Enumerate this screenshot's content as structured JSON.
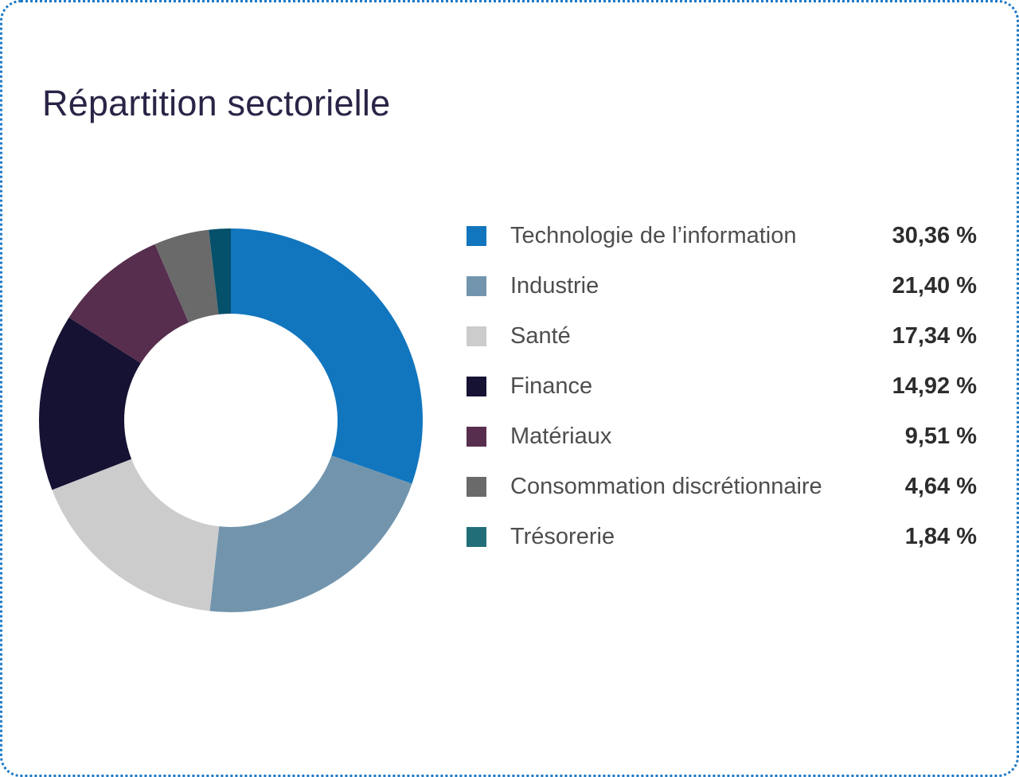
{
  "card": {
    "border_color": "#1d79c5",
    "background_color": "#ffffff"
  },
  "title": "Répartition sectorielle",
  "title_color": "#2a2447",
  "chart_data": {
    "type": "pie",
    "variant": "donut",
    "title": "Répartition sectorielle",
    "start_angle_deg": -90,
    "direction": "clockwise",
    "inner_radius_ratio": 0.556,
    "legend_position": "right",
    "value_format": "percent, comma decimal separator, space before %",
    "items": [
      {
        "label": "Technologie de l’information",
        "value": 30.36,
        "display": "30,36 %",
        "color": "#1276be"
      },
      {
        "label": "Industrie",
        "value": 21.4,
        "display": "21,40 %",
        "color": "#7295ad"
      },
      {
        "label": "Santé",
        "value": 17.34,
        "display": "17,34 %",
        "color": "#cccccd"
      },
      {
        "label": "Finance",
        "value": 14.92,
        "display": "14,92 %",
        "color": "#161233"
      },
      {
        "label": "Matériaux",
        "value": 9.51,
        "display": "9,51 %",
        "color": "#572e4e"
      },
      {
        "label": "Consommation discrétionnaire",
        "value": 4.64,
        "display": "4,64 %",
        "color": "#6a6a6a"
      },
      {
        "label": "Trésorerie",
        "value": 1.84,
        "display": "1,84 %",
        "color": "#216e79",
        "donut_color": "#05506a"
      }
    ]
  },
  "legend_style": {
    "label_color": "#4e4e4e",
    "value_color": "#2d2d2d"
  }
}
